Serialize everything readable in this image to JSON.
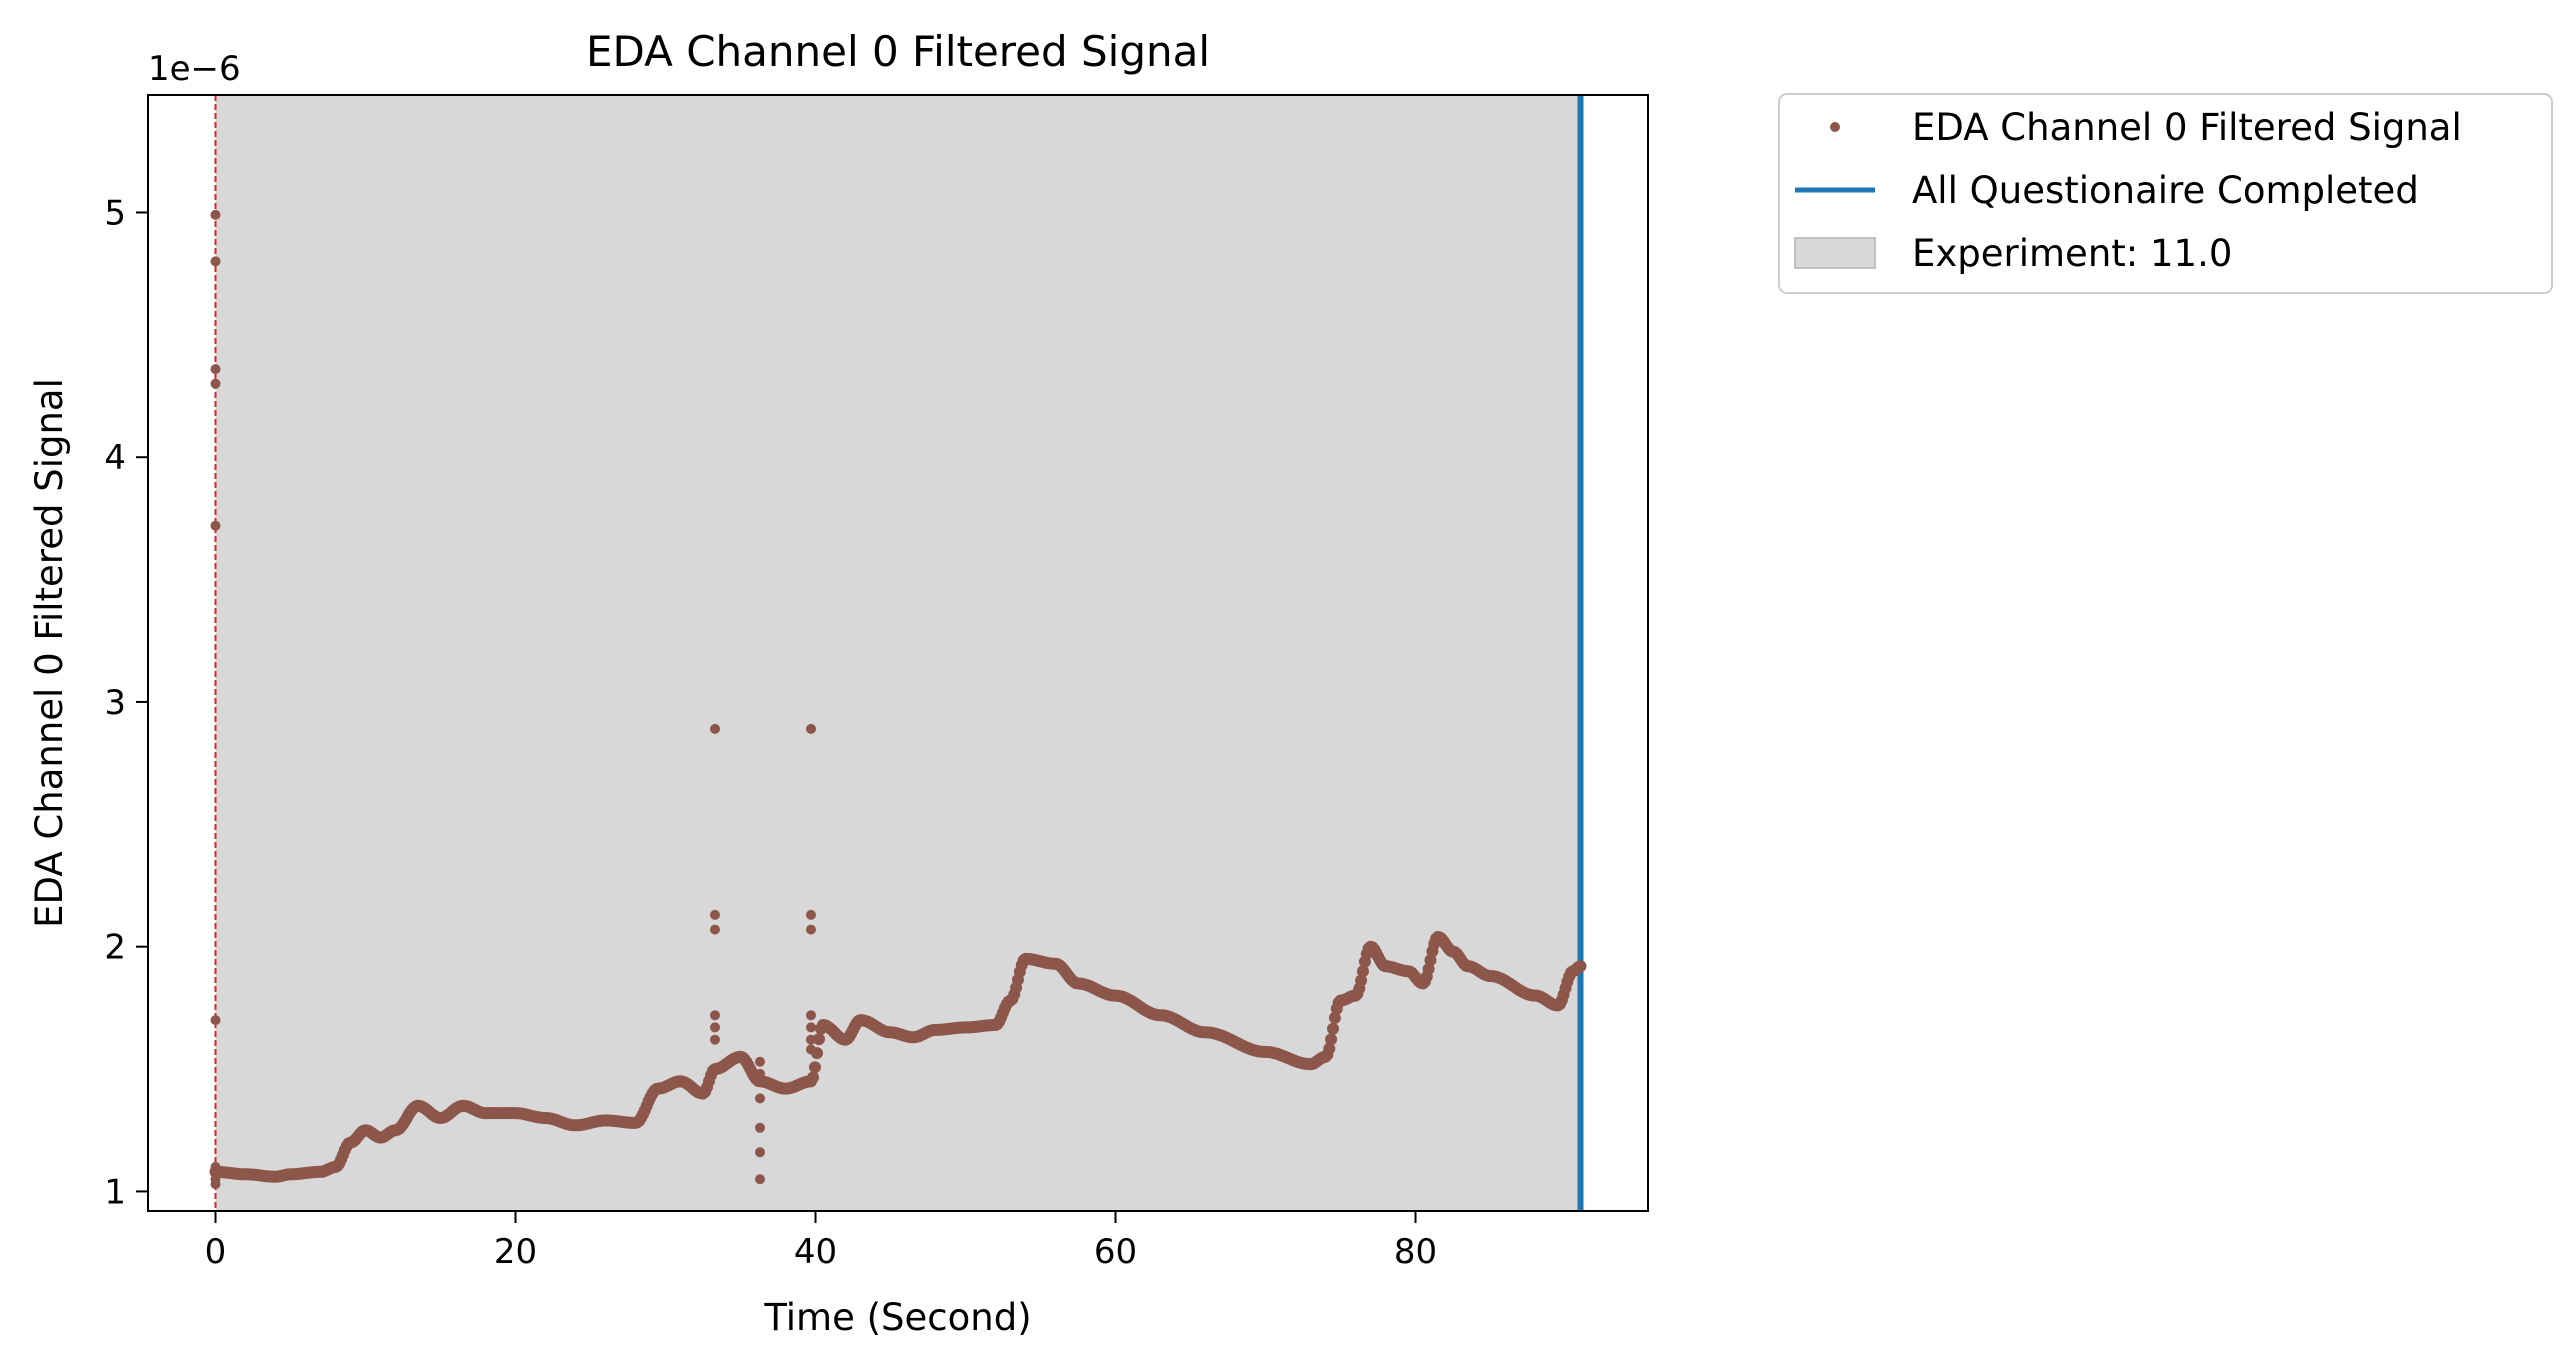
{
  "chart_data": {
    "type": "scatter",
    "title": "EDA Channel 0 Filtered Signal",
    "xlabel": "Time (Second)",
    "ylabel": "EDA Channel 0 Filtered Signal",
    "y_offset_label": "1e−6",
    "xlim": [
      -4.5,
      95.5
    ],
    "ylim": [
      0.92,
      5.48
    ],
    "x_ticks": [
      0,
      20,
      40,
      60,
      80
    ],
    "y_ticks": [
      1,
      2,
      3,
      4,
      5
    ],
    "grid": false,
    "legend_position": "outside upper right",
    "shaded_region": {
      "label": "Experiment: 11.0",
      "x_start": 0,
      "x_end": 91,
      "color": "#d8d8d8"
    },
    "vertical_lines": [
      {
        "name": "All Questionaire Completed",
        "x": 91,
        "color": "#1f77b4"
      },
      {
        "x": 0,
        "color": "#d62728",
        "style": "dashed"
      }
    ],
    "series": [
      {
        "name": "EDA Channel 0 Filtered Signal",
        "color": "#8c564b",
        "style": "dense-points",
        "curve": [
          [
            0,
            1.08
          ],
          [
            2,
            1.07
          ],
          [
            4,
            1.06
          ],
          [
            5,
            1.07
          ],
          [
            7,
            1.08
          ],
          [
            8,
            1.1
          ],
          [
            9,
            1.2
          ],
          [
            10,
            1.25
          ],
          [
            11,
            1.22
          ],
          [
            12,
            1.25
          ],
          [
            13.5,
            1.35
          ],
          [
            15,
            1.3
          ],
          [
            16.5,
            1.35
          ],
          [
            18,
            1.32
          ],
          [
            20,
            1.32
          ],
          [
            22,
            1.3
          ],
          [
            24,
            1.27
          ],
          [
            26,
            1.29
          ],
          [
            28,
            1.28
          ],
          [
            29.5,
            1.42
          ],
          [
            31,
            1.45
          ],
          [
            32.5,
            1.4
          ],
          [
            33.3,
            1.5
          ],
          [
            35,
            1.55
          ],
          [
            36.3,
            1.45
          ],
          [
            38,
            1.42
          ],
          [
            39.7,
            1.45
          ],
          [
            40.5,
            1.68
          ],
          [
            42,
            1.62
          ],
          [
            43,
            1.7
          ],
          [
            45,
            1.65
          ],
          [
            46.5,
            1.63
          ],
          [
            48,
            1.66
          ],
          [
            50,
            1.67
          ],
          [
            52,
            1.68
          ],
          [
            53,
            1.78
          ],
          [
            54,
            1.95
          ],
          [
            56,
            1.93
          ],
          [
            57.5,
            1.85
          ],
          [
            60,
            1.8
          ],
          [
            63,
            1.72
          ],
          [
            66,
            1.65
          ],
          [
            70,
            1.57
          ],
          [
            73,
            1.52
          ],
          [
            74,
            1.55
          ],
          [
            75,
            1.78
          ],
          [
            76,
            1.8
          ],
          [
            77,
            2.0
          ],
          [
            78,
            1.92
          ],
          [
            79.5,
            1.9
          ],
          [
            80.5,
            1.85
          ],
          [
            81.5,
            2.04
          ],
          [
            82.5,
            1.98
          ],
          [
            83.5,
            1.92
          ],
          [
            85,
            1.88
          ],
          [
            88,
            1.8
          ],
          [
            89.5,
            1.76
          ],
          [
            90.5,
            1.9
          ],
          [
            91,
            1.92
          ]
        ],
        "outliers": [
          [
            0,
            1.03
          ],
          [
            0,
            1.05
          ],
          [
            0,
            1.1
          ],
          [
            0,
            1.7
          ],
          [
            0,
            3.72
          ],
          [
            0,
            4.3
          ],
          [
            0,
            4.36
          ],
          [
            0,
            4.8
          ],
          [
            0,
            4.99
          ],
          [
            33.3,
            1.62
          ],
          [
            33.3,
            1.67
          ],
          [
            33.3,
            1.72
          ],
          [
            33.3,
            2.07
          ],
          [
            33.3,
            2.13
          ],
          [
            33.3,
            2.89
          ],
          [
            36.3,
            1.05
          ],
          [
            36.3,
            1.16
          ],
          [
            36.3,
            1.26
          ],
          [
            36.3,
            1.38
          ],
          [
            36.3,
            1.48
          ],
          [
            36.3,
            1.53
          ],
          [
            39.7,
            1.58
          ],
          [
            39.7,
            1.62
          ],
          [
            39.7,
            1.67
          ],
          [
            39.7,
            1.72
          ],
          [
            39.7,
            2.07
          ],
          [
            39.7,
            2.13
          ],
          [
            39.7,
            2.89
          ]
        ]
      }
    ],
    "legend": [
      {
        "label": "EDA Channel 0 Filtered Signal",
        "kind": "marker",
        "color": "#8c564b"
      },
      {
        "label": "All Questionaire Completed",
        "kind": "line",
        "color": "#1f77b4"
      },
      {
        "label": "Experiment: 11.0",
        "kind": "patch",
        "color": "#d8d8d8"
      }
    ]
  }
}
